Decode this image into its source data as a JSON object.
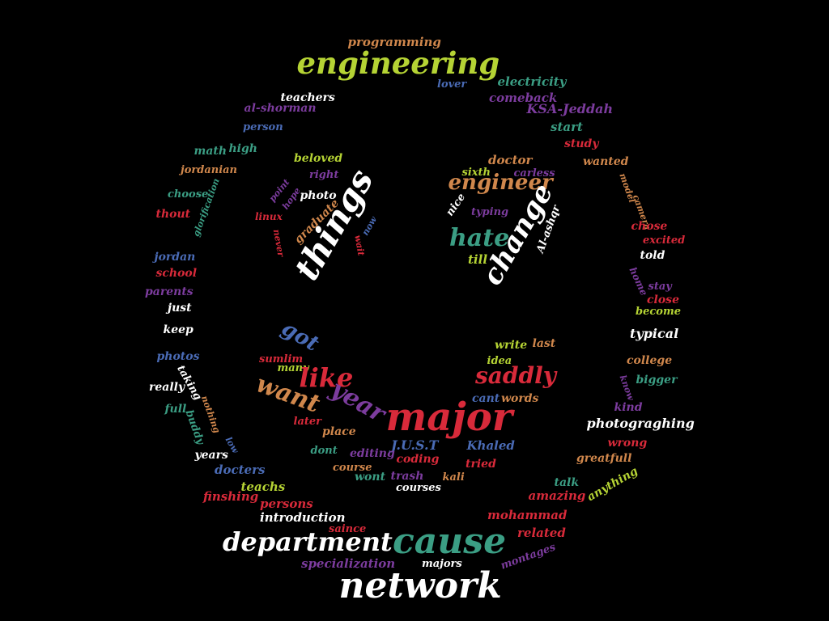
{
  "palette": {
    "white": "#ffffff",
    "green": "#b5d334",
    "teal": "#3b9e84",
    "red": "#d82a3a",
    "orange": "#d0874c",
    "purple": "#7c3c9e",
    "blue": "#4a6bb5"
  },
  "words": [
    {
      "text": "programming",
      "color": "orange"
    },
    {
      "text": "engineering",
      "color": "green"
    },
    {
      "text": "lover",
      "color": "blue"
    },
    {
      "text": "electricity",
      "color": "teal"
    },
    {
      "text": "teachers",
      "color": "white"
    },
    {
      "text": "comeback",
      "color": "purple"
    },
    {
      "text": "al-shorman",
      "color": "purple"
    },
    {
      "text": "KSA-Jeddah",
      "color": "purple"
    },
    {
      "text": "person",
      "color": "blue"
    },
    {
      "text": "start",
      "color": "teal"
    },
    {
      "text": "study",
      "color": "red"
    },
    {
      "text": "math",
      "color": "teal"
    },
    {
      "text": "high",
      "color": "teal"
    },
    {
      "text": "beloved",
      "color": "green"
    },
    {
      "text": "doctor",
      "color": "orange"
    },
    {
      "text": "wanted",
      "color": "orange"
    },
    {
      "text": "jordanian",
      "color": "orange"
    },
    {
      "text": "right",
      "color": "purple"
    },
    {
      "text": "sixth",
      "color": "green"
    },
    {
      "text": "carless",
      "color": "purple"
    },
    {
      "text": "choose",
      "color": "teal"
    },
    {
      "text": "glorification",
      "color": "teal"
    },
    {
      "text": "point",
      "color": "purple"
    },
    {
      "text": "hope",
      "color": "purple"
    },
    {
      "text": "photo",
      "color": "white"
    },
    {
      "text": "things",
      "color": "white"
    },
    {
      "text": "engineer",
      "color": "orange"
    },
    {
      "text": "nice",
      "color": "white"
    },
    {
      "text": "typing",
      "color": "purple"
    },
    {
      "text": "model",
      "color": "orange"
    },
    {
      "text": "camera",
      "color": "orange"
    },
    {
      "text": "thout",
      "color": "red"
    },
    {
      "text": "linux",
      "color": "red"
    },
    {
      "text": "graduate",
      "color": "orange"
    },
    {
      "text": "now",
      "color": "blue"
    },
    {
      "text": "hate",
      "color": "teal"
    },
    {
      "text": "change",
      "color": "white"
    },
    {
      "text": "Al-ashqr",
      "color": "white"
    },
    {
      "text": "chose",
      "color": "red"
    },
    {
      "text": "excited",
      "color": "red"
    },
    {
      "text": "never",
      "color": "red"
    },
    {
      "text": "wait",
      "color": "red"
    },
    {
      "text": "till",
      "color": "green"
    },
    {
      "text": "told",
      "color": "white"
    },
    {
      "text": "jordan",
      "color": "blue"
    },
    {
      "text": "school",
      "color": "red"
    },
    {
      "text": "home",
      "color": "purple"
    },
    {
      "text": "stay",
      "color": "purple"
    },
    {
      "text": "parents",
      "color": "purple"
    },
    {
      "text": "close",
      "color": "red"
    },
    {
      "text": "just",
      "color": "white"
    },
    {
      "text": "become",
      "color": "green"
    },
    {
      "text": "keep",
      "color": "white"
    },
    {
      "text": "typical",
      "color": "white"
    },
    {
      "text": "got",
      "color": "blue"
    },
    {
      "text": "write",
      "color": "green"
    },
    {
      "text": "last",
      "color": "orange"
    },
    {
      "text": "photos",
      "color": "blue"
    },
    {
      "text": "sumlim",
      "color": "red"
    },
    {
      "text": "idea",
      "color": "green"
    },
    {
      "text": "college",
      "color": "orange"
    },
    {
      "text": "many",
      "color": "green"
    },
    {
      "text": "taking",
      "color": "white"
    },
    {
      "text": "like",
      "color": "red"
    },
    {
      "text": "saddly",
      "color": "red"
    },
    {
      "text": "bigger",
      "color": "teal"
    },
    {
      "text": "really",
      "color": "white"
    },
    {
      "text": "want",
      "color": "orange"
    },
    {
      "text": "know",
      "color": "purple"
    },
    {
      "text": "cant",
      "color": "blue"
    },
    {
      "text": "words",
      "color": "orange"
    },
    {
      "text": "full",
      "color": "teal"
    },
    {
      "text": "nothing",
      "color": "orange"
    },
    {
      "text": "year",
      "color": "purple"
    },
    {
      "text": "kind",
      "color": "purple"
    },
    {
      "text": "buddy",
      "color": "teal"
    },
    {
      "text": "major",
      "color": "red"
    },
    {
      "text": "photograghing",
      "color": "white"
    },
    {
      "text": "later",
      "color": "red"
    },
    {
      "text": "place",
      "color": "orange"
    },
    {
      "text": "J.U.S.T",
      "color": "blue"
    },
    {
      "text": "Khaled",
      "color": "blue"
    },
    {
      "text": "wrong",
      "color": "red"
    },
    {
      "text": "low",
      "color": "blue"
    },
    {
      "text": "dont",
      "color": "teal"
    },
    {
      "text": "editing",
      "color": "purple"
    },
    {
      "text": "coding",
      "color": "red"
    },
    {
      "text": "tried",
      "color": "red"
    },
    {
      "text": "greatfull",
      "color": "orange"
    },
    {
      "text": "years",
      "color": "white"
    },
    {
      "text": "course",
      "color": "orange"
    },
    {
      "text": "docters",
      "color": "blue"
    },
    {
      "text": "wont",
      "color": "teal"
    },
    {
      "text": "trash",
      "color": "purple"
    },
    {
      "text": "kali",
      "color": "orange"
    },
    {
      "text": "talk",
      "color": "teal"
    },
    {
      "text": "anything",
      "color": "green"
    },
    {
      "text": "teachs",
      "color": "green"
    },
    {
      "text": "courses",
      "color": "white"
    },
    {
      "text": "finshing",
      "color": "red"
    },
    {
      "text": "amazing",
      "color": "red"
    },
    {
      "text": "persons",
      "color": "red"
    },
    {
      "text": "introduction",
      "color": "white"
    },
    {
      "text": "mohammad",
      "color": "red"
    },
    {
      "text": "saince",
      "color": "red"
    },
    {
      "text": "department",
      "color": "white"
    },
    {
      "text": "cause",
      "color": "teal"
    },
    {
      "text": "related",
      "color": "red"
    },
    {
      "text": "specialization",
      "color": "purple"
    },
    {
      "text": "majors",
      "color": "white"
    },
    {
      "text": "montages",
      "color": "purple"
    },
    {
      "text": "network",
      "color": "white"
    }
  ]
}
